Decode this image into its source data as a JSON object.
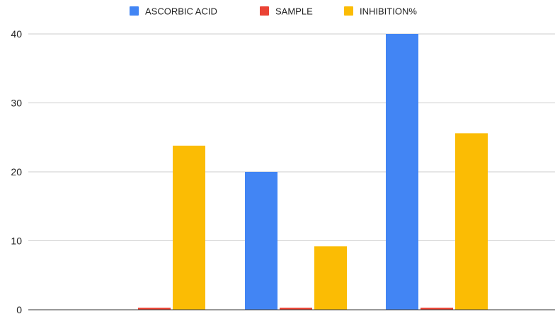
{
  "chart_data": {
    "type": "bar",
    "title": "",
    "xlabel": "",
    "ylabel": "",
    "categories": [
      "",
      "",
      ""
    ],
    "series": [
      {
        "name": "ASCORBIC ACID",
        "color": "#4285f4",
        "values": [
          0,
          20,
          40
        ]
      },
      {
        "name": "SAMPLE",
        "color": "#ea4335",
        "values": [
          0.3,
          0.3,
          0.3
        ]
      },
      {
        "name": "INHIBITION%",
        "color": "#fbbc04",
        "values": [
          23.8,
          9.2,
          25.6
        ]
      }
    ],
    "ylim": [
      0,
      40
    ],
    "yticks": [
      "0",
      "10",
      "20",
      "30",
      "40"
    ],
    "grid": true,
    "legend_position": "top"
  }
}
